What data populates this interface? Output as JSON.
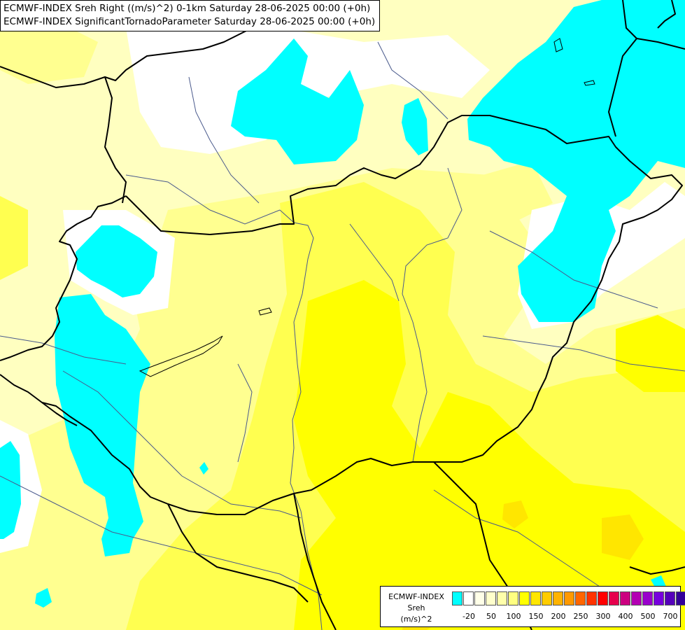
{
  "titles": {
    "line1": "ECMWF-INDEX Sreh Right ((m/s)^2) 0-1km Saturday 28-06-2025 00:00 (+0h)",
    "line2": "ECMWF-INDEX SignificantTornadoParameter Saturday 28-06-2025 00:00 (+0h)"
  },
  "legend": {
    "title": "ECMWF-INDEX",
    "variable": "Sreh",
    "unit": "(m/s)^2",
    "colors": [
      "#00ffff",
      "#ffffff",
      "#ffffe8",
      "#ffffcc",
      "#ffffaa",
      "#ffff80",
      "#ffff00",
      "#ffe600",
      "#ffcc00",
      "#ffb300",
      "#ff9900",
      "#ff6600",
      "#ff3300",
      "#ff0000",
      "#e6004d",
      "#cc0080",
      "#b300b3",
      "#9900cc",
      "#7700dd",
      "#5500bb",
      "#330099",
      "#000080"
    ],
    "tick_labels": [
      "-20",
      "50",
      "100",
      "150",
      "200",
      "250",
      "300",
      "400",
      "500",
      "700"
    ]
  },
  "palette": {
    "cyan": "#00ffff",
    "white": "#ffffff",
    "pale_yellow": "#ffffc0",
    "light_yellow": "#ffff90",
    "yellow": "#ffff50",
    "bright_yellow": "#ffff00",
    "gold": "#ffe600",
    "border": "#000000",
    "river": "#4a5a8c"
  }
}
